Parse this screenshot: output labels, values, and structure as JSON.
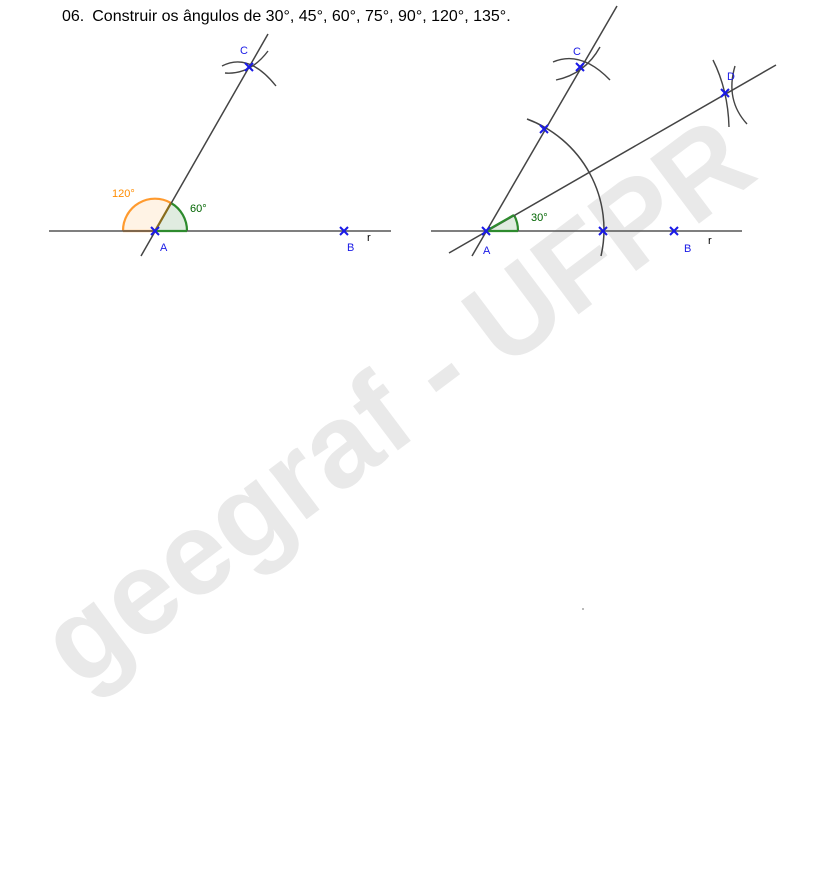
{
  "exercise": {
    "number": "06.",
    "statement": "Construir os ângulos de 30°, 45°, 60°, 75°, 90°, 120°, 135°."
  },
  "watermark": {
    "text": "geegraf - UFPR",
    "color": "#e9e9e9"
  },
  "figure_left": {
    "point_a": "A",
    "point_b": "B",
    "point_c": "C",
    "line_r": "r",
    "angle_60": "60°",
    "angle_120": "120°"
  },
  "figure_right": {
    "point_a": "A",
    "point_b": "B",
    "point_c": "C",
    "point_d": "D",
    "line_r": "r",
    "angle_30": "30°"
  },
  "colors": {
    "line": "#555555",
    "point": "#1a1ae6",
    "angle_green": "#006400",
    "angle_green_fill": "#006400",
    "angle_orange": "#ff8c00"
  }
}
